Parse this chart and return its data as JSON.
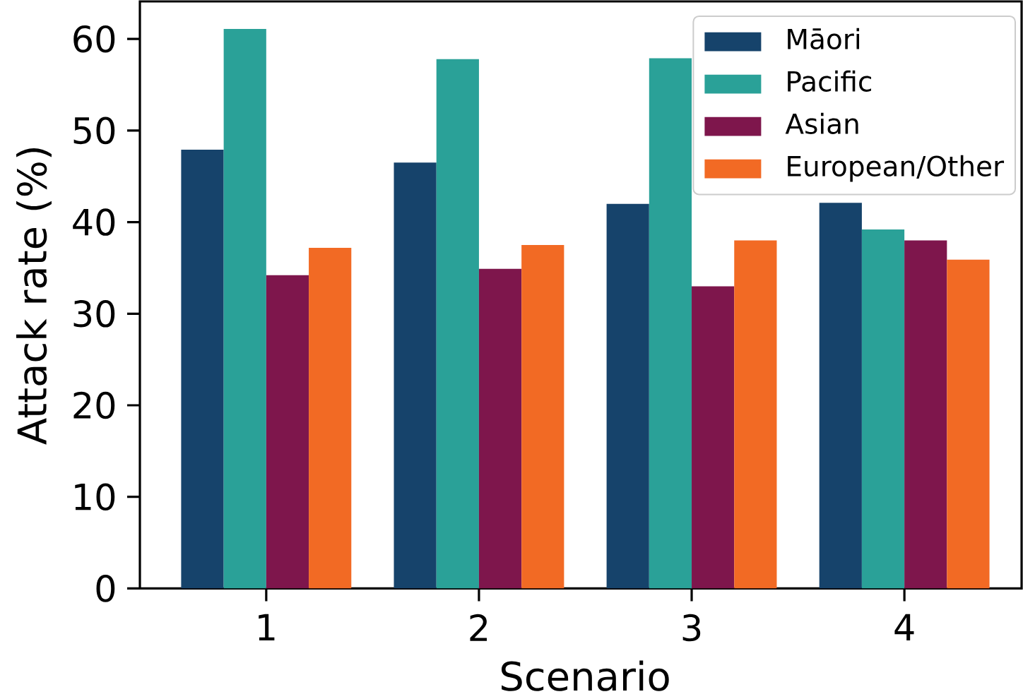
{
  "chart_data": {
    "type": "bar",
    "xlabel": "Scenario",
    "ylabel": "Attack rate (%)",
    "categories": [
      "1",
      "2",
      "3",
      "4"
    ],
    "series": [
      {
        "name": "Māori",
        "color": "#16436b",
        "values": [
          47.9,
          46.5,
          42.0,
          42.1
        ]
      },
      {
        "name": "Pacific",
        "color": "#2aa198",
        "values": [
          61.1,
          57.8,
          57.9,
          39.2
        ]
      },
      {
        "name": "Asian",
        "color": "#7e164c",
        "values": [
          34.2,
          34.9,
          33.0,
          38.0
        ]
      },
      {
        "name": "European/Other",
        "color": "#f26a24",
        "values": [
          37.2,
          37.5,
          38.0,
          35.9
        ]
      }
    ],
    "ylim": [
      0,
      64.1
    ],
    "yticks": [
      0,
      10,
      20,
      30,
      40,
      50,
      60
    ],
    "legend": "top right"
  }
}
